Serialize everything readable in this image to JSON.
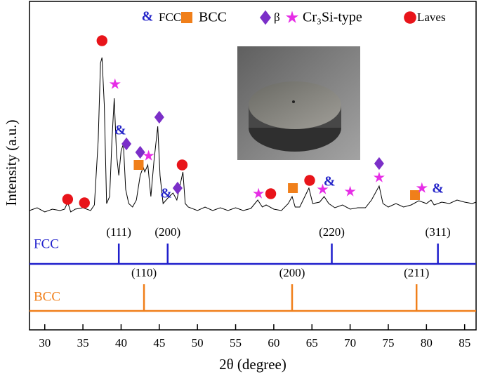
{
  "chart_data": {
    "type": "xrd",
    "xlabel": "2θ (degree)",
    "ylabel": "Intensity (a.u.)",
    "xlim": [
      28,
      86.5
    ],
    "xticks": [
      30,
      35,
      40,
      45,
      50,
      55,
      60,
      65,
      70,
      75,
      80,
      85
    ],
    "ylim": [
      0,
      328
    ],
    "trace": {
      "color": "#000000",
      "x": [
        28,
        29,
        30,
        31,
        32,
        32.6,
        33.0,
        33.4,
        34,
        35,
        35.5,
        36,
        36.5,
        37.0,
        37.3,
        37.5,
        37.8,
        38.1,
        38.5,
        38.8,
        39.1,
        39.4,
        39.7,
        40.0,
        40.3,
        40.6,
        41.0,
        41.5,
        42.0,
        42.5,
        42.9,
        43.1,
        43.5,
        43.9,
        44.3,
        44.8,
        45.1,
        45.5,
        45.9,
        46.3,
        46.8,
        47.3,
        48.1,
        48.4,
        48.8,
        50,
        51,
        52,
        53,
        54,
        55,
        56,
        57,
        57.9,
        58.5,
        59,
        60,
        61,
        61.9,
        62.4,
        62.8,
        63.4,
        64.6,
        65.1,
        66,
        66.6,
        67.2,
        68,
        69,
        70,
        71,
        72,
        72.8,
        73.8,
        74.3,
        75,
        76,
        77,
        78,
        79,
        80,
        80.6,
        81,
        82,
        83,
        84,
        85,
        86,
        86.5
      ],
      "values": [
        30,
        34,
        28,
        32,
        30,
        32,
        42,
        28,
        32,
        34,
        32,
        30,
        38,
        130,
        240,
        248,
        180,
        40,
        50,
        130,
        190,
        110,
        80,
        115,
        125,
        60,
        40,
        35,
        45,
        80,
        92,
        85,
        95,
        50,
        100,
        150,
        80,
        40,
        45,
        50,
        55,
        45,
        85,
        40,
        35,
        30,
        35,
        30,
        34,
        30,
        34,
        30,
        33,
        45,
        35,
        38,
        32,
        30,
        40,
        50,
        35,
        35,
        62,
        40,
        42,
        50,
        40,
        34,
        38,
        32,
        34,
        34,
        45,
        65,
        40,
        35,
        40,
        35,
        38,
        44,
        40,
        45,
        38,
        42,
        40,
        45,
        42,
        40,
        42
      ]
    },
    "series": [
      {
        "name": "FCC",
        "marker": "&",
        "color": "#2323c8",
        "x": [
          39.9,
          45.9,
          67.3,
          81.5
        ],
        "values": [
          143,
          53,
          70,
          60
        ]
      },
      {
        "name": "BCC",
        "marker": "square",
        "color": "#f07f1a",
        "x": [
          42.3,
          62.5,
          78.5
        ],
        "values": [
          95,
          62,
          52
        ]
      },
      {
        "name": "β",
        "marker": "diamond",
        "color": "#7b2fc8",
        "x": [
          40.7,
          42.5,
          45.0,
          47.4,
          73.8
        ],
        "values": [
          125,
          113,
          163,
          62,
          97
        ]
      },
      {
        "name": "Cr₃Si-type",
        "marker": "star",
        "color": "#e62de6",
        "x": [
          39.2,
          43.6,
          58.0,
          66.4,
          70.0,
          73.8,
          79.4
        ],
        "values": [
          210,
          108,
          54,
          60,
          57,
          77,
          62
        ]
      },
      {
        "name": "Laves",
        "marker": "circle",
        "color": "#e8141a",
        "x": [
          33.0,
          35.2,
          37.5,
          48.0,
          59.6,
          64.7
        ],
        "values": [
          46,
          41,
          272,
          95,
          54,
          73
        ]
      }
    ],
    "reference_patterns": [
      {
        "name": "FCC",
        "color": "#1f1fcc",
        "x": [
          39.7,
          46.1,
          67.6,
          81.5
        ],
        "labels": [
          "(111)",
          "(200)",
          "(220)",
          "(311)"
        ]
      },
      {
        "name": "BCC",
        "color": "#f07f1a",
        "x": [
          43.0,
          62.4,
          78.7
        ],
        "labels": [
          "(110)",
          "(200)",
          "(211)"
        ]
      }
    ]
  }
}
